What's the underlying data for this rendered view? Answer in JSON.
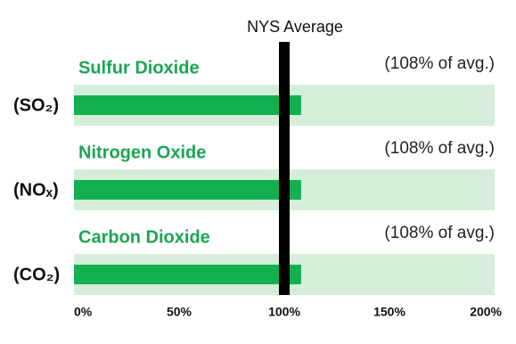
{
  "chart_data": {
    "type": "bar",
    "orientation": "horizontal",
    "categories": [
      "Sulfur Dioxide",
      "Nitrogen Oxide",
      "Carbon Dioxide"
    ],
    "formulas": [
      "(SO₂)",
      "(NOₓ)",
      "(CO₂)"
    ],
    "values": [
      108,
      108,
      108
    ],
    "value_labels": [
      "(108% of avg.)",
      "(108% of avg.)",
      "(108% of avg.)"
    ],
    "color": "#12b04f",
    "band_color": "#d5eeda",
    "title_color": "#1aa653",
    "reference": {
      "value": 100,
      "label": "NYS Average"
    },
    "xlim": [
      0,
      200
    ],
    "xticks": [
      {
        "value": 0,
        "label": "0%"
      },
      {
        "value": 50,
        "label": "50%"
      },
      {
        "value": 100,
        "label": "100%"
      },
      {
        "value": 150,
        "label": "150%"
      },
      {
        "value": 200,
        "label": "200%"
      }
    ]
  }
}
